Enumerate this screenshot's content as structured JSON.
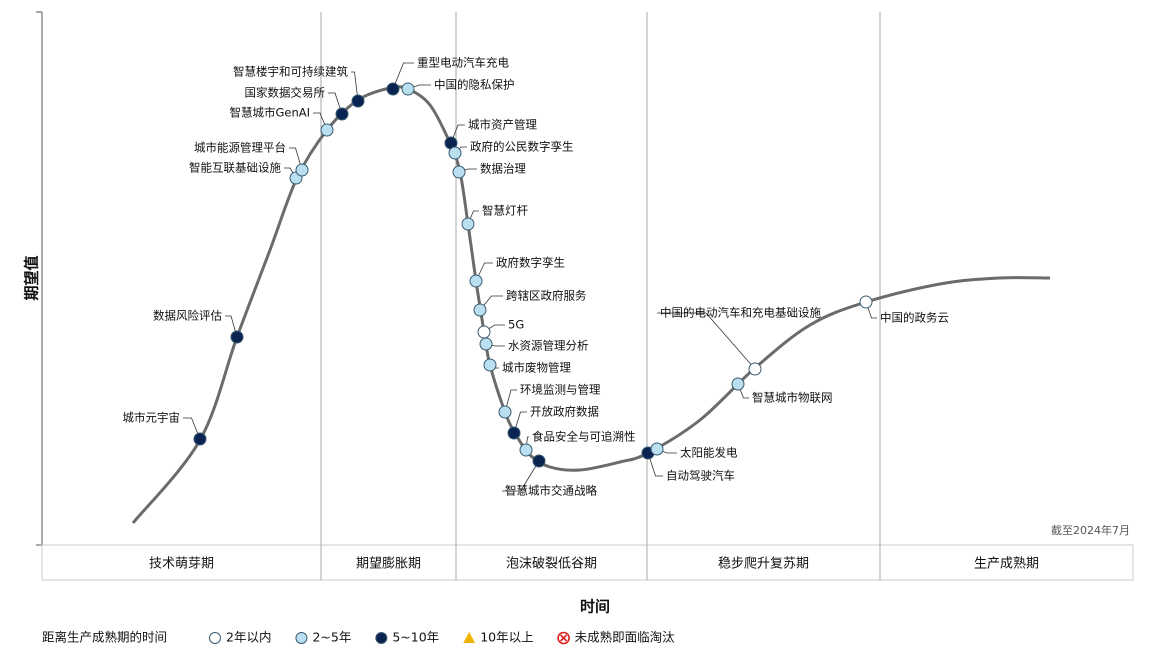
{
  "y_axis_label": "期望值",
  "x_axis_label": "时间",
  "note": "截至2024年7月",
  "phases": [
    "技术萌芽期",
    "期望膨胀期",
    "泡沫破裂低谷期",
    "稳步爬升复苏期",
    "生产成熟期"
  ],
  "legend": {
    "title": "距离生产成熟期的时间",
    "items": [
      {
        "label": "2年以内",
        "marker": "circle",
        "color": "#ffffff"
      },
      {
        "label": "2~5年",
        "marker": "circle",
        "color": "#b9dff0"
      },
      {
        "label": "5~10年",
        "marker": "circle",
        "color": "#0a2451"
      },
      {
        "label": "10年以上",
        "marker": "triangle",
        "color": "#f0b400"
      },
      {
        "label": "未成熟即面临淘汰",
        "marker": "cross",
        "color": "#e02020"
      }
    ]
  },
  "nodes": [
    {
      "label": "城市元宇宙",
      "color": "#0a2451"
    },
    {
      "label": "数据风险评估",
      "color": "#0a2451"
    },
    {
      "label": "智能互联基础设施",
      "color": "#b9dff0"
    },
    {
      "label": "城市能源管理平台",
      "color": "#b9dff0"
    },
    {
      "label": "智慧城市GenAI",
      "color": "#b9dff0"
    },
    {
      "label": "国家数据交易所",
      "color": "#0a2451"
    },
    {
      "label": "智慧楼宇和可持续建筑",
      "color": "#0a2451"
    },
    {
      "label": "重型电动汽车充电",
      "color": "#0a2451"
    },
    {
      "label": "中国的隐私保护",
      "color": "#b9dff0"
    },
    {
      "label": "城市资产管理",
      "color": "#0a2451"
    },
    {
      "label": "政府的公民数字孪生",
      "color": "#b9dff0"
    },
    {
      "label": "数据治理",
      "color": "#b9dff0"
    },
    {
      "label": "智慧灯杆",
      "color": "#b9dff0"
    },
    {
      "label": "政府数字孪生",
      "color": "#b9dff0"
    },
    {
      "label": "跨辖区政府服务",
      "color": "#b9dff0"
    },
    {
      "label": "5G",
      "color": "#ffffff"
    },
    {
      "label": "水资源管理分析",
      "color": "#b9dff0"
    },
    {
      "label": "城市废物管理",
      "color": "#b9dff0"
    },
    {
      "label": "环境监测与管理",
      "color": "#b9dff0"
    },
    {
      "label": "开放政府数据",
      "color": "#0a2451"
    },
    {
      "label": "食品安全与可追溯性",
      "color": "#b9dff0"
    },
    {
      "label": "智慧城市交通战略",
      "color": "#0a2451"
    },
    {
      "label": "自动驾驶汽车",
      "color": "#0a2451"
    },
    {
      "label": "太阳能发电",
      "color": "#b9dff0"
    },
    {
      "label": "智慧城市物联网",
      "color": "#b9dff0"
    },
    {
      "label": "中国的电动汽车和充电基础设施",
      "color": "#ffffff"
    },
    {
      "label": "中国的政务云",
      "color": "#ffffff"
    }
  ]
}
